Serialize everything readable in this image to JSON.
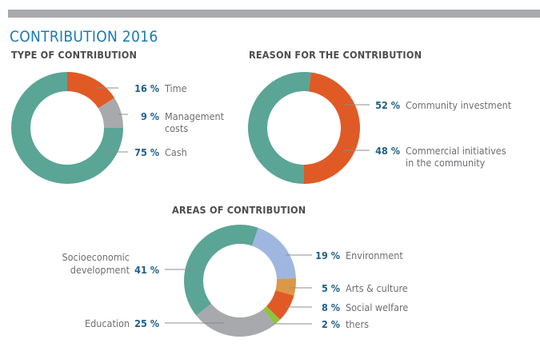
{
  "title": "CONTRIBUTION 2016",
  "chart_data": [
    {
      "type": "pie",
      "style": "donut",
      "title": "TYPE OF CONTRIBUTION",
      "slices": [
        {
          "name": "Time",
          "label_lines": [
            "Time"
          ],
          "value": 16,
          "pct_label": "16 %",
          "color": "#e05a25"
        },
        {
          "name": "Management costs",
          "label_lines": [
            "Management",
            "costs"
          ],
          "value": 9,
          "pct_label": "9 %",
          "color": "#a7a9ac"
        },
        {
          "name": "Cash",
          "label_lines": [
            "Cash"
          ],
          "value": 75,
          "pct_label": "75 %",
          "color": "#5aa596"
        }
      ]
    },
    {
      "type": "pie",
      "style": "donut",
      "title": "REASON FOR THE CONTRIBUTION",
      "slices": [
        {
          "name": "Community investment",
          "label_lines": [
            "Community investment"
          ],
          "value": 52,
          "pct_label": "52 %",
          "color": "#5aa596"
        },
        {
          "name": "Commercial initiatives in the community",
          "label_lines": [
            "Commercial initiatives",
            "in the community"
          ],
          "value": 48,
          "pct_label": "48 %",
          "color": "#e05a25"
        }
      ]
    },
    {
      "type": "pie",
      "style": "donut",
      "title": "AREAS OF CONTRIBUTION",
      "slices": [
        {
          "name": "Environment",
          "label_lines": [
            "Environment"
          ],
          "value": 19,
          "pct_label": "19 %",
          "color": "#9fb7e0"
        },
        {
          "name": "Arts & culture",
          "label_lines": [
            "Arts & culture"
          ],
          "value": 5,
          "pct_label": "5 %",
          "color": "#dc9748"
        },
        {
          "name": "Social welfare",
          "label_lines": [
            "Social welfare"
          ],
          "value": 8,
          "pct_label": "8 %",
          "color": "#e05a25"
        },
        {
          "name": "thers",
          "label_lines": [
            "thers"
          ],
          "value": 2,
          "pct_label": "2 %",
          "color": "#8dc43f"
        },
        {
          "name": "Education",
          "label_lines": [
            "Education"
          ],
          "value": 25,
          "pct_label": "25 %",
          "color": "#a7a9ac"
        },
        {
          "name": "Socioeconomic development",
          "label_lines": [
            "Socioeconomic",
            "development"
          ],
          "value": 41,
          "pct_label": "41 %",
          "color": "#5aa596"
        }
      ]
    }
  ]
}
